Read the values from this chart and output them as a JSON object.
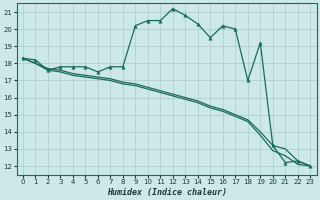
{
  "xlabel": "Humidex (Indice chaleur)",
  "bg_color": "#cce8e8",
  "grid_color": "#aacccc",
  "line_color": "#1a6b5a",
  "xlim": [
    -0.5,
    23.5
  ],
  "ylim": [
    11.5,
    21.5
  ],
  "xticks": [
    0,
    1,
    2,
    3,
    4,
    5,
    6,
    7,
    8,
    9,
    10,
    11,
    12,
    13,
    14,
    15,
    16,
    17,
    18,
    19,
    20,
    21,
    22,
    23
  ],
  "yticks": [
    12,
    13,
    14,
    15,
    16,
    17,
    18,
    19,
    20,
    21
  ],
  "line1_y": [
    18.3,
    18.2,
    17.6,
    17.8,
    17.8,
    17.8,
    17.5,
    17.8,
    17.8,
    20.2,
    20.5,
    20.5,
    21.2,
    20.8,
    20.3,
    19.5,
    20.2,
    20.0,
    17.0,
    19.2,
    13.2,
    12.2,
    12.3,
    12.0
  ],
  "line2_y": [
    18.3,
    18.0,
    17.6,
    17.5,
    17.3,
    17.2,
    17.1,
    17.0,
    16.8,
    16.7,
    16.5,
    16.3,
    16.1,
    15.9,
    15.7,
    15.4,
    15.2,
    14.9,
    14.6,
    13.8,
    12.9,
    12.6,
    12.1,
    12.0
  ],
  "line3_y": [
    18.3,
    18.0,
    17.7,
    17.6,
    17.4,
    17.3,
    17.2,
    17.1,
    16.9,
    16.8,
    16.6,
    16.4,
    16.2,
    16.0,
    15.8,
    15.5,
    15.3,
    15.0,
    14.7,
    14.0,
    13.2,
    13.0,
    12.3,
    12.0
  ]
}
